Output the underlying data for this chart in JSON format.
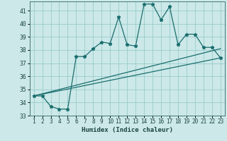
{
  "title": "",
  "xlabel": "Humidex (Indice chaleur)",
  "xlim": [
    0.5,
    23.5
  ],
  "ylim": [
    33,
    41.7
  ],
  "yticks": [
    33,
    34,
    35,
    36,
    37,
    38,
    39,
    40,
    41
  ],
  "xticks": [
    1,
    2,
    3,
    4,
    5,
    6,
    7,
    8,
    9,
    10,
    11,
    12,
    13,
    14,
    15,
    16,
    17,
    18,
    19,
    20,
    21,
    22,
    23
  ],
  "bg_color": "#cce8e8",
  "grid_color": "#99cccc",
  "line_color": "#1a6e6e",
  "line1_x": [
    1,
    2,
    3,
    4,
    5,
    6,
    7,
    8,
    9,
    10,
    11,
    12,
    13,
    14,
    15,
    16,
    17,
    18,
    19,
    20,
    21,
    22,
    23
  ],
  "line1_y": [
    34.5,
    34.5,
    33.7,
    33.5,
    33.5,
    37.5,
    37.5,
    38.1,
    38.6,
    38.5,
    40.5,
    38.4,
    38.3,
    41.5,
    41.5,
    40.3,
    41.3,
    38.4,
    39.2,
    39.2,
    38.2,
    38.2,
    37.4
  ],
  "line2_x": [
    1,
    23
  ],
  "line2_y": [
    34.5,
    37.4
  ],
  "line3_x": [
    1,
    23
  ],
  "line3_y": [
    34.5,
    38.1
  ],
  "marker": "*",
  "markersize": 3.5,
  "linewidth": 0.9,
  "xlabel_fontsize": 6.5,
  "tick_fontsize": 5.5
}
